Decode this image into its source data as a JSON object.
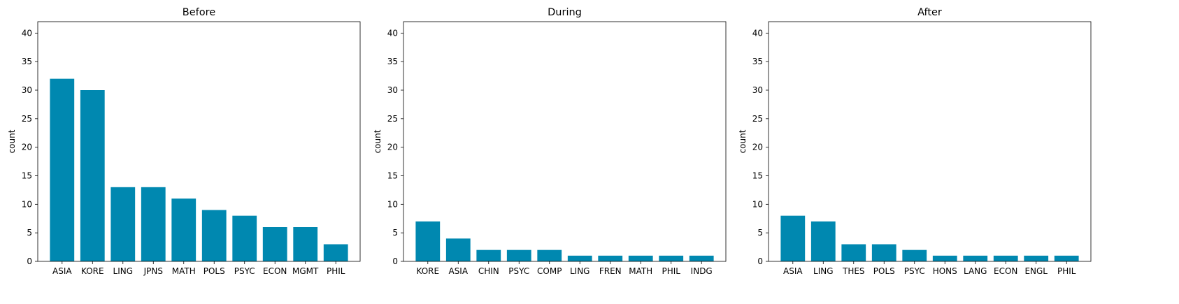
{
  "chart_data": [
    {
      "type": "bar",
      "title": "Before",
      "xlabel": "",
      "ylabel": "count",
      "ylim": [
        0,
        42
      ],
      "yticks": [
        0,
        5,
        10,
        15,
        20,
        25,
        30,
        35,
        40
      ],
      "grid": false,
      "color": "#0088b0",
      "categories": [
        "ASIA",
        "KORE",
        "LING",
        "JPNS",
        "MATH",
        "POLS",
        "PSYC",
        "ECON",
        "MGMT",
        "PHIL"
      ],
      "values": [
        32,
        30,
        13,
        13,
        11,
        9,
        8,
        6,
        6,
        3
      ]
    },
    {
      "type": "bar",
      "title": "During",
      "xlabel": "",
      "ylabel": "count",
      "ylim": [
        0,
        42
      ],
      "yticks": [
        0,
        5,
        10,
        15,
        20,
        25,
        30,
        35,
        40
      ],
      "grid": false,
      "color": "#0088b0",
      "categories": [
        "KORE",
        "ASIA",
        "CHIN",
        "PSYC",
        "COMP",
        "LING",
        "FREN",
        "MATH",
        "PHIL",
        "INDG"
      ],
      "values": [
        7,
        4,
        2,
        2,
        2,
        1,
        1,
        1,
        1,
        1
      ]
    },
    {
      "type": "bar",
      "title": "After",
      "xlabel": "",
      "ylabel": "count",
      "ylim": [
        0,
        42
      ],
      "yticks": [
        0,
        5,
        10,
        15,
        20,
        25,
        30,
        35,
        40
      ],
      "grid": false,
      "color": "#0088b0",
      "categories": [
        "ASIA",
        "LING",
        "THES",
        "POLS",
        "PSYC",
        "HONS",
        "LANG",
        "ECON",
        "ENGL",
        "PHIL"
      ],
      "values": [
        8,
        7,
        3,
        3,
        2,
        1,
        1,
        1,
        1,
        1
      ]
    }
  ]
}
